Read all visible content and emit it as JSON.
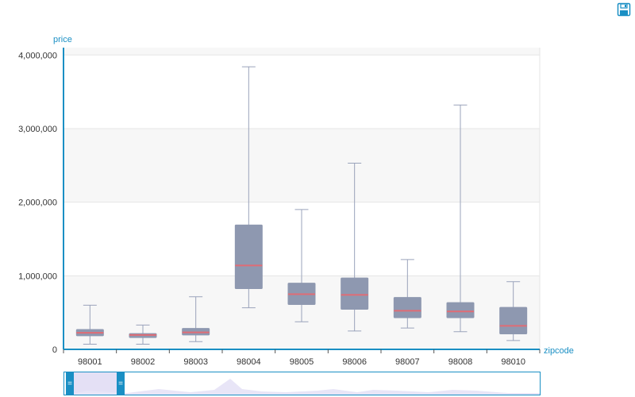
{
  "toolbar": {
    "save_icon": "floppy-disk-icon"
  },
  "colors": {
    "axis": "#1a8fc4",
    "box_fill": "#8e98b0",
    "box_stroke": "#8e98b0",
    "whisker": "#9aa3bb",
    "median": "#e06c75",
    "band": "#f7f7f7",
    "grid": "#e6e6e6",
    "navigator_fill": "#e4e0f5",
    "navigator_handle": "#1a8fc4"
  },
  "chart_data": {
    "type": "boxplot",
    "title": "",
    "xlabel": "zipcode",
    "ylabel": "price",
    "ylim": [
      0,
      4000000
    ],
    "y_ticks": [
      {
        "value": 0,
        "label": "0"
      },
      {
        "value": 1000000,
        "label": "1,000,000"
      },
      {
        "value": 2000000,
        "label": "2,000,000"
      },
      {
        "value": 3000000,
        "label": "3,000,000"
      },
      {
        "value": 4000000,
        "label": "4,000,000"
      }
    ],
    "grid": true,
    "categories": [
      "98001",
      "98002",
      "98003",
      "98004",
      "98005",
      "98006",
      "98007",
      "98008",
      "98010"
    ],
    "boxes": [
      {
        "min": 70000,
        "q1": 185000,
        "median": 225000,
        "q3": 270000,
        "max": 600000
      },
      {
        "min": 70000,
        "q1": 160000,
        "median": 195000,
        "q3": 215000,
        "max": 330000
      },
      {
        "min": 105000,
        "q1": 195000,
        "median": 230000,
        "q3": 285000,
        "max": 715000
      },
      {
        "min": 565000,
        "q1": 825000,
        "median": 1140000,
        "q3": 1690000,
        "max": 3840000
      },
      {
        "min": 375000,
        "q1": 610000,
        "median": 750000,
        "q3": 900000,
        "max": 1900000
      },
      {
        "min": 250000,
        "q1": 545000,
        "median": 740000,
        "q3": 970000,
        "max": 2530000
      },
      {
        "min": 290000,
        "q1": 430000,
        "median": 525000,
        "q3": 705000,
        "max": 1220000
      },
      {
        "min": 240000,
        "q1": 430000,
        "median": 515000,
        "q3": 635000,
        "max": 3320000
      },
      {
        "min": 120000,
        "q1": 210000,
        "median": 320000,
        "q3": 570000,
        "max": 920000
      }
    ]
  }
}
